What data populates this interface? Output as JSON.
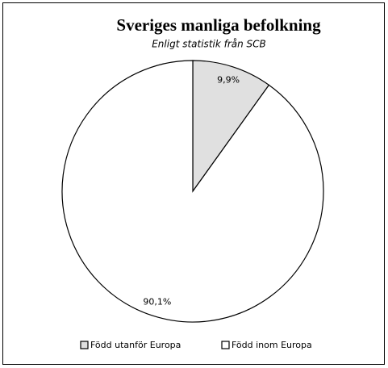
{
  "chart_data": {
    "type": "pie",
    "title": "Sveriges manliga befolkning",
    "subtitle": "Enligt statistik från SCB",
    "categories": [
      "Född utanför Europa",
      "Född inom Europa"
    ],
    "values": [
      9.9,
      90.1
    ],
    "value_labels": [
      "9,9%",
      "90,1%"
    ],
    "colors": [
      "#e0e0e0",
      "#ffffff"
    ]
  }
}
